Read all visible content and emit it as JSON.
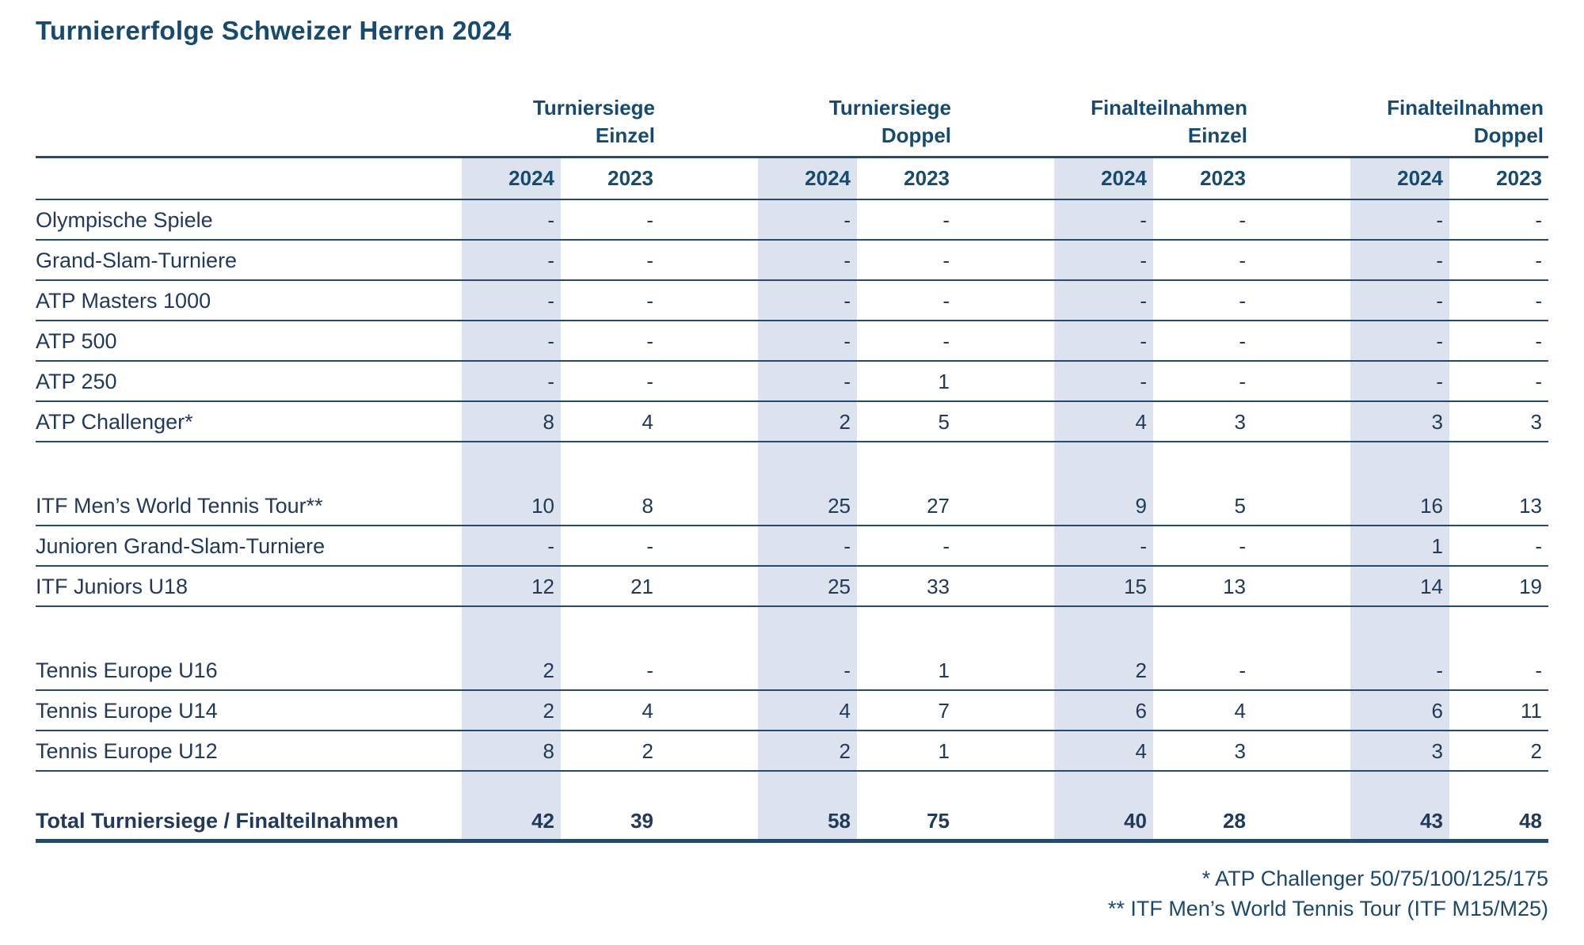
{
  "title": "Turniererfolge Schweizer Herren 2024",
  "colors": {
    "text_navy": "#21395b",
    "heading_blue": "#174a6f",
    "rule_line": "#27496d",
    "column_shade": "#dce3ee"
  },
  "table": {
    "groups": [
      {
        "line1": "Turniersiege",
        "line2": "Einzel"
      },
      {
        "line1": "Turniersiege",
        "line2": "Doppel"
      },
      {
        "line1": "Finalteilnahmen",
        "line2": "Einzel"
      },
      {
        "line1": "Finalteilnahmen",
        "line2": "Doppel"
      }
    ],
    "year_headers": [
      "2024",
      "2023",
      "2024",
      "2023",
      "2024",
      "2023",
      "2024",
      "2023"
    ],
    "sections": [
      {
        "rows": [
          {
            "label": "Olympische Spiele",
            "values": [
              "-",
              "-",
              "-",
              "-",
              "-",
              "-",
              "-",
              "-"
            ]
          },
          {
            "label": "Grand-Slam-Turniere",
            "values": [
              "-",
              "-",
              "-",
              "-",
              "-",
              "-",
              "-",
              "-"
            ]
          },
          {
            "label": "ATP Masters 1000",
            "values": [
              "-",
              "-",
              "-",
              "-",
              "-",
              "-",
              "-",
              "-"
            ]
          },
          {
            "label": "ATP 500",
            "values": [
              "-",
              "-",
              "-",
              "-",
              "-",
              "-",
              "-",
              "-"
            ]
          },
          {
            "label": "ATP 250",
            "values": [
              "-",
              "-",
              "-",
              "1",
              "-",
              "-",
              "-",
              "-"
            ]
          },
          {
            "label": "ATP Challenger*",
            "values": [
              "8",
              "4",
              "2",
              "5",
              "4",
              "3",
              "3",
              "3"
            ]
          }
        ]
      },
      {
        "rows": [
          {
            "label": "ITF Men’s World Tennis Tour**",
            "values": [
              "10",
              "8",
              "25",
              "27",
              "9",
              "5",
              "16",
              "13"
            ]
          },
          {
            "label": "Junioren Grand-Slam-Turniere",
            "values": [
              "-",
              "-",
              "-",
              "-",
              "-",
              "-",
              "1",
              "-"
            ]
          },
          {
            "label": "ITF Juniors U18",
            "values": [
              "12",
              "21",
              "25",
              "33",
              "15",
              "13",
              "14",
              "19"
            ]
          }
        ]
      },
      {
        "rows": [
          {
            "label": "Tennis Europe U16",
            "values": [
              "2",
              "-",
              "-",
              "1",
              "2",
              "-",
              "-",
              "-"
            ]
          },
          {
            "label": "Tennis Europe U14",
            "values": [
              "2",
              "4",
              "4",
              "7",
              "6",
              "4",
              "6",
              "11"
            ]
          },
          {
            "label": "Tennis Europe U12",
            "values": [
              "8",
              "2",
              "2",
              "1",
              "4",
              "3",
              "3",
              "2"
            ]
          }
        ]
      }
    ],
    "total": {
      "label": "Total Turniersiege / Finalteilnahmen",
      "values": [
        "42",
        "39",
        "58",
        "75",
        "40",
        "28",
        "43",
        "48"
      ]
    }
  },
  "footnotes": [
    "* ATP Challenger 50/75/100/125/175",
    "** ITF Men’s World Tennis Tour (ITF M15/M25)"
  ]
}
